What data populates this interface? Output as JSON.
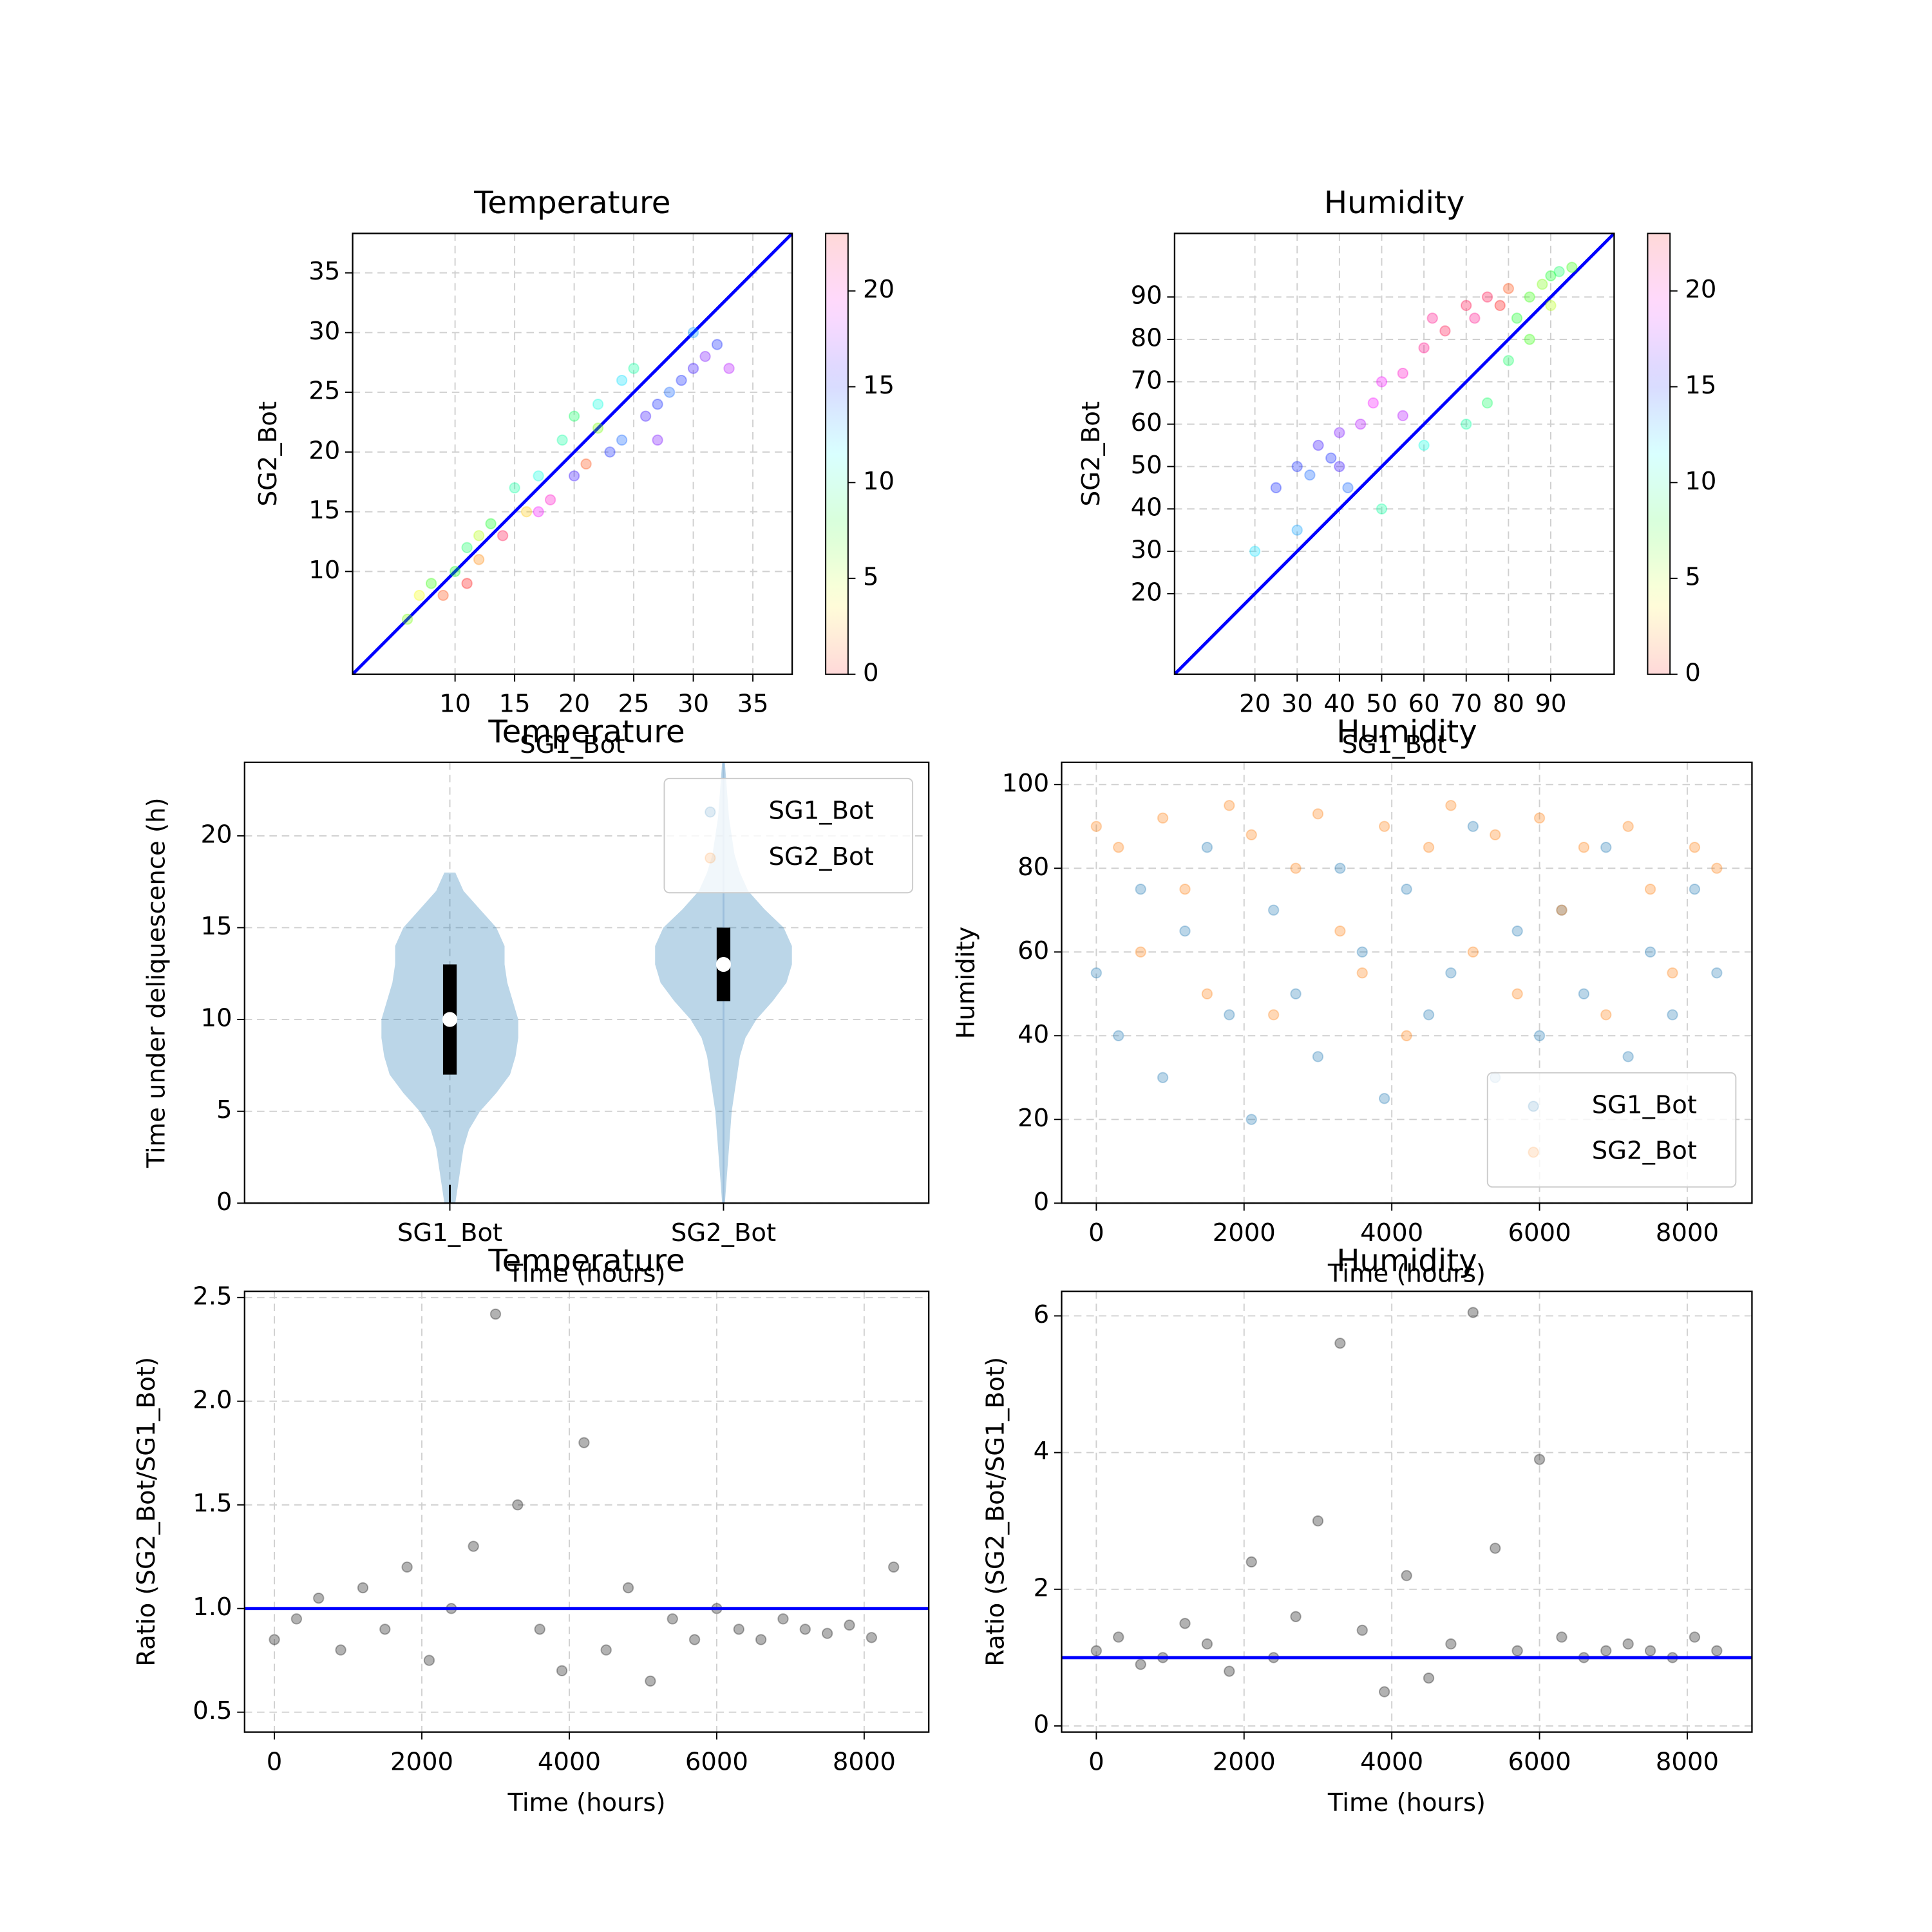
{
  "chart_data": [
    {
      "type": "scatter",
      "title": "Temperature",
      "xlabel": "SG1_Bot",
      "ylabel": "SG2_Bot",
      "xlim": [
        1.4,
        38.3
      ],
      "ylim": [
        1.4,
        38.3
      ],
      "xticks": [
        10,
        15,
        20,
        25,
        30,
        35
      ],
      "yticks": [
        10,
        15,
        20,
        25,
        30,
        35
      ],
      "grid": true,
      "diagonal": true,
      "line_color": "#0000ff",
      "alpha": 0.3,
      "x": [
        6,
        8,
        9,
        10,
        11,
        12,
        13,
        14,
        15,
        16,
        17,
        18,
        19,
        20,
        21,
        22,
        23,
        24,
        25,
        26,
        27,
        28,
        29,
        30,
        31,
        32,
        33,
        20,
        17,
        12,
        7,
        24,
        30,
        11,
        27,
        22
      ],
      "y": [
        6,
        9,
        8,
        10,
        12,
        11,
        14,
        13,
        17,
        15,
        18,
        16,
        21,
        18,
        19,
        24,
        20,
        21,
        27,
        23,
        24,
        25,
        26,
        27,
        28,
        29,
        27,
        23,
        15,
        13,
        8,
        26,
        30,
        9,
        21,
        22
      ],
      "c": [
        6,
        7,
        1,
        8,
        9,
        2,
        8,
        22,
        10,
        3,
        11,
        20,
        10,
        16,
        1,
        11,
        15,
        14,
        10,
        16,
        15,
        14,
        15,
        16,
        17,
        15,
        18,
        9,
        19,
        5,
        4,
        12,
        13,
        0,
        17,
        6
      ],
      "colorbar": {
        "lim": [
          0,
          23
        ],
        "ticks": [
          0,
          5,
          10,
          15,
          20
        ],
        "colormap": "hsv"
      }
    },
    {
      "type": "scatter",
      "title": "Humidity",
      "xlabel": "SG1_Bot",
      "ylabel": "SG2_Bot",
      "xlim": [
        1,
        105
      ],
      "ylim": [
        1,
        105
      ],
      "xticks": [
        20,
        30,
        40,
        50,
        60,
        70,
        80,
        90
      ],
      "yticks": [
        20,
        30,
        40,
        50,
        60,
        70,
        80,
        90
      ],
      "grid": true,
      "diagonal": true,
      "line_color": "#0000ff",
      "alpha": 0.3,
      "x": [
        25,
        30,
        33,
        35,
        38,
        40,
        42,
        45,
        48,
        50,
        55,
        60,
        62,
        65,
        70,
        72,
        75,
        78,
        80,
        82,
        85,
        88,
        90,
        92,
        95,
        80,
        70,
        60,
        90,
        85,
        30,
        20,
        50,
        75,
        40,
        55
      ],
      "y": [
        45,
        50,
        48,
        55,
        52,
        58,
        45,
        60,
        65,
        70,
        72,
        78,
        85,
        82,
        88,
        85,
        90,
        88,
        92,
        85,
        90,
        93,
        95,
        96,
        97,
        75,
        60,
        55,
        88,
        80,
        35,
        30,
        40,
        65,
        50,
        62
      ],
      "c": [
        15,
        15,
        14,
        16,
        15,
        17,
        14,
        18,
        19,
        19,
        20,
        21,
        21,
        22,
        22,
        21,
        22,
        0,
        1,
        8,
        7,
        6,
        8,
        9,
        7,
        9,
        10,
        11,
        5,
        7,
        13,
        12,
        10,
        9,
        16,
        18
      ],
      "colorbar": {
        "lim": [
          0,
          23
        ],
        "ticks": [
          0,
          5,
          10,
          15,
          20
        ],
        "colormap": "hsv"
      }
    },
    {
      "type": "violin",
      "title": "Temperature",
      "xlabel": "Time (hours)",
      "ylabel": "Time under deliquescence (h)",
      "categories": [
        "SG1_Bot",
        "SG2_Bot"
      ],
      "ylim": [
        0,
        24
      ],
      "yticks": [
        0,
        5,
        10,
        15,
        20
      ],
      "grid": true,
      "color": "#1f77b4",
      "alpha": 0.3,
      "violins": [
        {
          "y": [
            0,
            1,
            2,
            3,
            4,
            5,
            6,
            7,
            8,
            9,
            10,
            11,
            12,
            13,
            14,
            15,
            16,
            17,
            18
          ],
          "halfwidth": [
            0.02,
            0.03,
            0.04,
            0.05,
            0.07,
            0.11,
            0.17,
            0.22,
            0.24,
            0.25,
            0.25,
            0.23,
            0.21,
            0.2,
            0.2,
            0.17,
            0.11,
            0.05,
            0.02
          ],
          "median": 10,
          "q1": 7,
          "q3": 13,
          "whisker": [
            0,
            1
          ],
          "whisker_color": "#000000"
        },
        {
          "y": [
            0,
            1,
            2,
            3,
            4,
            5,
            6,
            7,
            8,
            9,
            10,
            11,
            12,
            13,
            14,
            15,
            16,
            17,
            18,
            19,
            20,
            21,
            22,
            23,
            24
          ],
          "halfwidth": [
            0.005,
            0.01,
            0.015,
            0.02,
            0.025,
            0.03,
            0.04,
            0.05,
            0.06,
            0.08,
            0.12,
            0.18,
            0.23,
            0.25,
            0.25,
            0.22,
            0.15,
            0.09,
            0.06,
            0.04,
            0.03,
            0.02,
            0.015,
            0.01,
            0.005
          ],
          "median": 13,
          "q1": 11,
          "q3": 15,
          "whisker": [
            0,
            24
          ],
          "whisker_color": "#9dbfdc"
        }
      ],
      "legend": {
        "loc": "upper right",
        "entries": [
          {
            "name": "SG1_Bot",
            "color": "#1f77b4"
          },
          {
            "name": "SG2_Bot",
            "color": "#ff7f0e"
          }
        ]
      }
    },
    {
      "type": "scatter",
      "title": "Humidity",
      "xlabel": "Time (hours)",
      "ylabel": "Humidity",
      "xlim": [
        -470,
        8876
      ],
      "ylim": [
        0,
        105.3
      ],
      "xticks": [
        0,
        2000,
        4000,
        6000,
        8000
      ],
      "yticks": [
        0,
        20,
        40,
        60,
        80,
        100
      ],
      "grid": true,
      "alpha": 0.3,
      "legend_loc": "lower right",
      "x": [
        0,
        300,
        600,
        900,
        1200,
        1500,
        1800,
        2100,
        2400,
        2700,
        3000,
        3300,
        3600,
        3900,
        4200,
        4500,
        4800,
        5100,
        5400,
        5700,
        6000,
        6300,
        6600,
        6900,
        7200,
        7500,
        7800,
        8100,
        8400
      ],
      "series": [
        {
          "name": "SG1_Bot",
          "color": "#1f77b4",
          "values": [
            55,
            40,
            75,
            30,
            65,
            85,
            45,
            20,
            70,
            50,
            35,
            80,
            60,
            25,
            75,
            45,
            55,
            90,
            30,
            65,
            40,
            70,
            50,
            85,
            35,
            60,
            45,
            75,
            55
          ]
        },
        {
          "name": "SG2_Bot",
          "color": "#ff7f0e",
          "values": [
            90,
            85,
            60,
            92,
            75,
            50,
            95,
            88,
            45,
            80,
            93,
            65,
            55,
            90,
            40,
            85,
            95,
            60,
            88,
            50,
            92,
            70,
            85,
            45,
            90,
            75,
            55,
            85,
            80
          ]
        }
      ]
    },
    {
      "type": "scatter",
      "title": "Temperature",
      "xlabel": "Time (hours)",
      "ylabel": "Ratio (SG2_Bot/SG1_Bot)",
      "xlim": [
        -404,
        8876
      ],
      "ylim": [
        0.404,
        2.53
      ],
      "xticks": [
        0,
        2000,
        4000,
        6000,
        8000
      ],
      "yticks": [
        0.5,
        {
          "value": 1,
          "label": "1.0"
        },
        1.5,
        {
          "value": 2,
          "label": "2.0"
        },
        2.5
      ],
      "grid": true,
      "alpha": 0.3,
      "hline": 1,
      "line_color": "#0000ff",
      "x": [
        0,
        300,
        600,
        900,
        1200,
        1500,
        1800,
        2100,
        2400,
        2700,
        3000,
        3300,
        3600,
        3900,
        4200,
        4500,
        4800,
        5100,
        5400,
        5700,
        6000,
        6300,
        6600,
        6900,
        7200,
        7500,
        7800,
        8100,
        8400
      ],
      "series": [
        {
          "color": "#000000",
          "values": [
            0.85,
            0.95,
            1.05,
            0.8,
            1.1,
            0.9,
            1.2,
            0.75,
            1.0,
            1.3,
            2.42,
            1.5,
            0.9,
            0.7,
            1.8,
            0.8,
            1.1,
            0.65,
            0.95,
            0.85,
            1.0,
            0.9,
            0.85,
            0.95,
            0.9,
            0.88,
            0.92,
            0.86,
            1.2
          ]
        }
      ]
    },
    {
      "type": "scatter",
      "title": "Humidity",
      "xlabel": "Time (hours)",
      "ylabel": "Ratio (SG2_Bot/SG1_Bot)",
      "xlim": [
        -470,
        8876
      ],
      "ylim": [
        -0.09,
        6.36
      ],
      "xticks": [
        0,
        2000,
        4000,
        6000,
        8000
      ],
      "yticks": [
        0,
        2,
        4,
        6
      ],
      "grid": true,
      "alpha": 0.3,
      "hline": 1,
      "line_color": "#0000ff",
      "x": [
        0,
        300,
        600,
        900,
        1200,
        1500,
        1800,
        2100,
        2400,
        2700,
        3000,
        3300,
        3600,
        3900,
        4200,
        4500,
        4800,
        5100,
        5400,
        5700,
        6000,
        6300,
        6600,
        6900,
        7200,
        7500,
        7800,
        8100,
        8400
      ],
      "series": [
        {
          "color": "#000000",
          "values": [
            1.1,
            1.3,
            0.9,
            1.0,
            1.5,
            1.2,
            0.8,
            2.4,
            1.0,
            1.6,
            3.0,
            5.6,
            1.4,
            0.5,
            2.2,
            0.7,
            1.2,
            6.05,
            2.6,
            1.1,
            3.9,
            1.3,
            1.0,
            1.1,
            1.2,
            1.1,
            1.0,
            1.3,
            1.1
          ]
        }
      ]
    }
  ]
}
